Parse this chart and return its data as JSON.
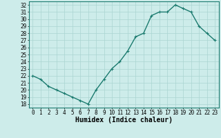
{
  "x": [
    0,
    1,
    2,
    3,
    4,
    5,
    6,
    7,
    8,
    9,
    10,
    11,
    12,
    13,
    14,
    15,
    16,
    17,
    18,
    19,
    20,
    21,
    22,
    23
  ],
  "y": [
    22,
    21.5,
    20.5,
    20,
    19.5,
    19,
    18.5,
    18,
    20,
    21.5,
    23,
    24,
    25.5,
    27.5,
    28,
    30.5,
    31,
    31,
    32,
    31.5,
    31,
    29,
    28,
    27
  ],
  "line_color": "#1a7a6e",
  "marker": "+",
  "marker_size": 3,
  "bg_color": "#cdecea",
  "grid_color": "#aad4d1",
  "xlabel": "Humidex (Indice chaleur)",
  "ylabel_ticks": [
    18,
    19,
    20,
    21,
    22,
    23,
    24,
    25,
    26,
    27,
    28,
    29,
    30,
    31,
    32
  ],
  "ylim": [
    17.5,
    32.5
  ],
  "xlim": [
    -0.5,
    23.5
  ],
  "xticks": [
    0,
    1,
    2,
    3,
    4,
    5,
    6,
    7,
    8,
    9,
    10,
    11,
    12,
    13,
    14,
    15,
    16,
    17,
    18,
    19,
    20,
    21,
    22,
    23
  ],
  "tick_fontsize": 5.5,
  "label_fontsize": 7,
  "line_width": 1.0,
  "marker_edge_width": 0.8
}
